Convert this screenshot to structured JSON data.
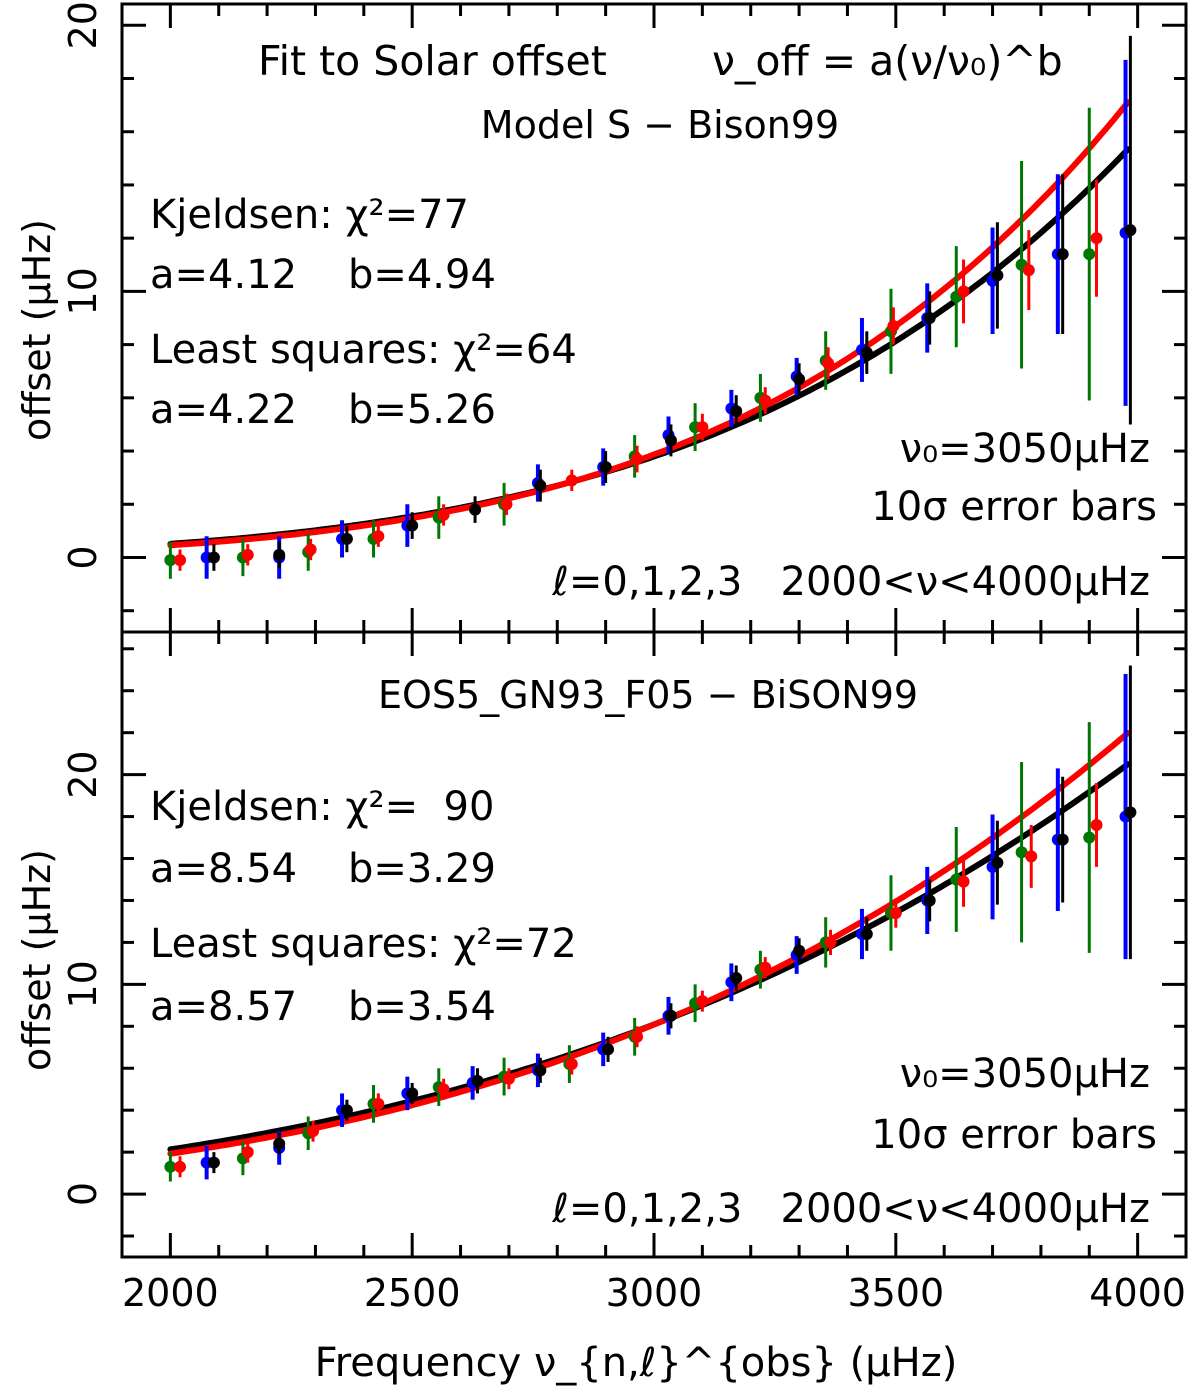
{
  "chart_data": [
    {
      "type": "scatter",
      "title": "Fit to Solar offset",
      "formula": "ν_off = a(ν/ν₀)^b",
      "subtitle": "Model S − Bison99",
      "ylabel": "offset (μHz)",
      "xlabel": "Frequency ν_{n,ℓ}^{obs} (μHz)",
      "xlim": [
        1900,
        4100
      ],
      "ylim": [
        -2.8,
        20.8
      ],
      "yticks": [
        0,
        10,
        20
      ],
      "xticks": [
        2000,
        2500,
        3000,
        3500,
        4000
      ],
      "annotations": {
        "kjeldsen": "Kjeldsen: χ²=77",
        "kjeldsen_params": "a=4.12    b=4.94",
        "lsq": "Least squares: χ²=64",
        "lsq_params": "a=4.22    b=5.26",
        "nu0": "ν₀=3050μHz",
        "errbars": "10σ error bars",
        "range": "ℓ=0,1,2,3   2000<ν<4000μHz"
      },
      "fits": [
        {
          "name": "Kjeldsen",
          "a": 4.12,
          "b": 4.94,
          "color": "#000000"
        },
        {
          "name": "Least squares",
          "a": 4.22,
          "b": 5.26,
          "color": "#ff0000"
        }
      ],
      "series": [
        {
          "l": 0,
          "color": "#007700",
          "points": [
            [
              2000,
              -0.1,
              0.7
            ],
            [
              2150,
              0.0,
              0.7
            ],
            [
              2285,
              0.2,
              0.7
            ],
            [
              2420,
              0.7,
              0.7
            ],
            [
              2555,
              1.5,
              0.8
            ],
            [
              2690,
              2.0,
              0.8
            ],
            [
              2960,
              3.8,
              0.8
            ],
            [
              3085,
              4.9,
              0.9
            ],
            [
              3220,
              6.0,
              0.9
            ],
            [
              3355,
              7.4,
              1.1
            ],
            [
              3490,
              8.5,
              1.6
            ],
            [
              3625,
              9.8,
              1.9
            ],
            [
              3760,
              11.0,
              3.9
            ],
            [
              3900,
              11.4,
              5.5
            ]
          ]
        },
        {
          "l": 1,
          "color": "#0000ff",
          "points": [
            [
              2075,
              0.0,
              0.8
            ],
            [
              2225,
              0.0,
              0.8
            ],
            [
              2355,
              0.7,
              0.7
            ],
            [
              2490,
              1.2,
              0.8
            ],
            [
              2760,
              2.8,
              0.7
            ],
            [
              2895,
              3.4,
              0.7
            ],
            [
              3030,
              4.6,
              0.7
            ],
            [
              3160,
              5.6,
              0.7
            ],
            [
              3295,
              6.8,
              0.7
            ],
            [
              3430,
              7.8,
              1.2
            ],
            [
              3565,
              9.0,
              1.3
            ],
            [
              3700,
              10.4,
              2.0
            ],
            [
              3835,
              11.4,
              3.0
            ],
            [
              3975,
              12.2,
              6.5
            ]
          ]
        },
        {
          "l": 2,
          "color": "#000000",
          "points": [
            [
              2090,
              0.0,
              0.5
            ],
            [
              2225,
              0.1,
              0.5
            ],
            [
              2365,
              0.7,
              0.5
            ],
            [
              2500,
              1.2,
              0.5
            ],
            [
              2630,
              1.8,
              0.5
            ],
            [
              2765,
              2.7,
              0.6
            ],
            [
              2900,
              3.4,
              0.6
            ],
            [
              3035,
              4.4,
              0.6
            ],
            [
              3170,
              5.5,
              0.6
            ],
            [
              3300,
              6.7,
              0.6
            ],
            [
              3440,
              7.7,
              0.8
            ],
            [
              3570,
              9.0,
              1.0
            ],
            [
              3710,
              10.6,
              2.0
            ],
            [
              3845,
              11.4,
              3.0
            ],
            [
              3985,
              12.3,
              7.3
            ]
          ]
        },
        {
          "l": 3,
          "color": "#ff0000",
          "points": [
            [
              2020,
              -0.1,
              0.4
            ],
            [
              2160,
              0.1,
              0.4
            ],
            [
              2290,
              0.3,
              0.4
            ],
            [
              2430,
              0.8,
              0.4
            ],
            [
              2565,
              1.6,
              0.4
            ],
            [
              2695,
              2.0,
              0.4
            ],
            [
              2830,
              2.9,
              0.4
            ],
            [
              2965,
              3.7,
              0.5
            ],
            [
              3100,
              4.9,
              0.5
            ],
            [
              3230,
              5.9,
              0.5
            ],
            [
              3360,
              7.3,
              0.6
            ],
            [
              3495,
              8.7,
              0.7
            ],
            [
              3640,
              10.0,
              1.2
            ],
            [
              3775,
              10.8,
              1.5
            ],
            [
              3915,
              12.0,
              2.2
            ]
          ]
        }
      ]
    },
    {
      "type": "scatter",
      "subtitle": "EOS5_GN93_F05 − BiSON99",
      "ylabel": "offset (μHz)",
      "xlabel": "Frequency ν_{n,ℓ}^{obs} (μHz)",
      "xlim": [
        1900,
        4100
      ],
      "ylim": [
        -3.0,
        26.8
      ],
      "yticks": [
        0,
        10,
        20
      ],
      "xticks": [
        2000,
        2500,
        3000,
        3500,
        4000
      ],
      "annotations": {
        "kjeldsen": "Kjeldsen: χ²=  90",
        "kjeldsen_params": "a=8.54    b=3.29",
        "lsq": "Least squares: χ²=72",
        "lsq_params": "a=8.57    b=3.54",
        "nu0": "ν₀=3050μHz",
        "errbars": "10σ error bars",
        "range": "ℓ=0,1,2,3   2000<ν<4000μHz"
      },
      "fits": [
        {
          "name": "Kjeldsen",
          "a": 8.54,
          "b": 3.29,
          "color": "#000000"
        },
        {
          "name": "Least squares",
          "a": 8.57,
          "b": 3.54,
          "color": "#ff0000"
        }
      ],
      "series": [
        {
          "l": 0,
          "color": "#007700",
          "points": [
            [
              2000,
              1.3,
              0.7
            ],
            [
              2150,
              1.7,
              0.8
            ],
            [
              2285,
              2.9,
              0.8
            ],
            [
              2420,
              4.3,
              0.9
            ],
            [
              2555,
              5.1,
              0.9
            ],
            [
              2690,
              5.6,
              0.9
            ],
            [
              2825,
              6.2,
              0.9
            ],
            [
              2960,
              7.5,
              0.9
            ],
            [
              3085,
              9.1,
              0.9
            ],
            [
              3220,
              10.7,
              0.9
            ],
            [
              3355,
              12.0,
              1.2
            ],
            [
              3490,
              13.4,
              1.8
            ],
            [
              3625,
              15.0,
              2.5
            ],
            [
              3760,
              16.3,
              4.3
            ],
            [
              3900,
              17.0,
              5.5
            ]
          ]
        },
        {
          "l": 1,
          "color": "#0000ff",
          "points": [
            [
              2075,
              1.5,
              0.8
            ],
            [
              2225,
              2.2,
              0.8
            ],
            [
              2355,
              4.0,
              0.8
            ],
            [
              2490,
              4.8,
              0.8
            ],
            [
              2625,
              5.3,
              0.8
            ],
            [
              2760,
              5.9,
              0.8
            ],
            [
              2895,
              6.9,
              0.8
            ],
            [
              3030,
              8.5,
              0.9
            ],
            [
              3160,
              10.1,
              0.9
            ],
            [
              3295,
              11.4,
              0.9
            ],
            [
              3430,
              12.4,
              1.2
            ],
            [
              3565,
              14.0,
              1.6
            ],
            [
              3700,
              15.6,
              2.5
            ],
            [
              3835,
              16.9,
              3.4
            ],
            [
              3975,
              18.0,
              6.8
            ]
          ]
        },
        {
          "l": 2,
          "color": "#000000",
          "points": [
            [
              2090,
              1.5,
              0.5
            ],
            [
              2225,
              2.4,
              0.5
            ],
            [
              2365,
              4.0,
              0.5
            ],
            [
              2500,
              4.8,
              0.5
            ],
            [
              2635,
              5.4,
              0.6
            ],
            [
              2765,
              5.9,
              0.6
            ],
            [
              2905,
              6.9,
              0.6
            ],
            [
              3035,
              8.5,
              0.6
            ],
            [
              3170,
              10.3,
              0.6
            ],
            [
              3300,
              11.6,
              0.6
            ],
            [
              3440,
              12.4,
              0.8
            ],
            [
              3570,
              14.0,
              1.0
            ],
            [
              3710,
              15.8,
              2.0
            ],
            [
              3845,
              16.9,
              3.0
            ],
            [
              3985,
              18.2,
              7.0
            ]
          ]
        },
        {
          "l": 3,
          "color": "#ff0000",
          "points": [
            [
              2020,
              1.3,
              0.5
            ],
            [
              2160,
              2.0,
              0.5
            ],
            [
              2295,
              3.0,
              0.5
            ],
            [
              2430,
              4.3,
              0.5
            ],
            [
              2565,
              5.0,
              0.5
            ],
            [
              2700,
              5.5,
              0.5
            ],
            [
              2830,
              6.2,
              0.5
            ],
            [
              2965,
              7.5,
              0.5
            ],
            [
              3100,
              9.2,
              0.5
            ],
            [
              3230,
              10.8,
              0.5
            ],
            [
              3365,
              12.0,
              0.6
            ],
            [
              3500,
              13.4,
              0.7
            ],
            [
              3640,
              14.9,
              1.2
            ],
            [
              3780,
              16.1,
              1.5
            ],
            [
              3915,
              17.6,
              2.0
            ]
          ]
        }
      ]
    }
  ]
}
